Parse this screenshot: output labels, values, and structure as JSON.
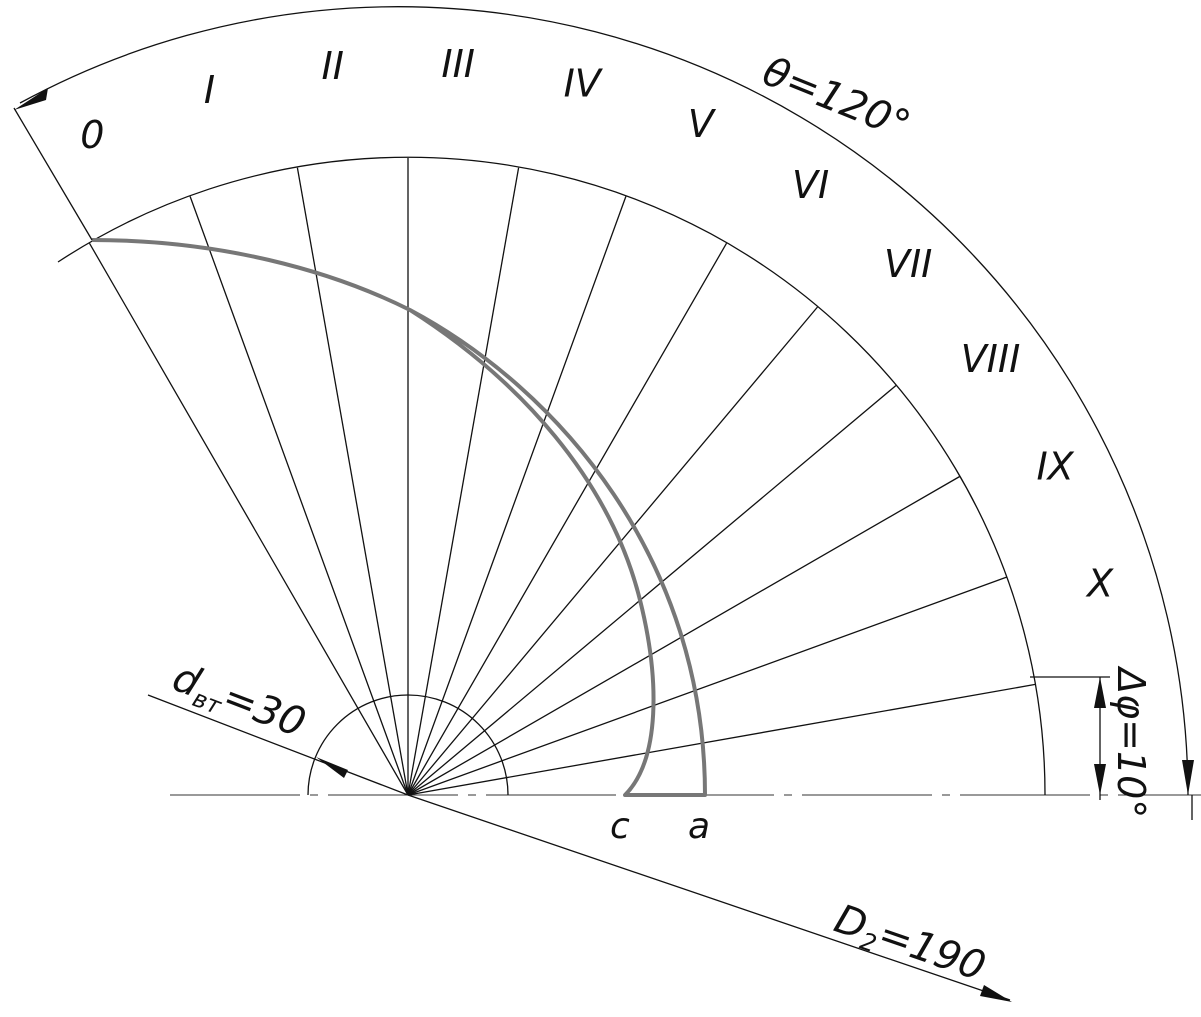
{
  "diagram": {
    "stations": [
      "0",
      "I",
      "II",
      "III",
      "IV",
      "V",
      "VI",
      "VII",
      "VIII",
      "IX",
      "X"
    ],
    "theta_label": "θ=120°",
    "dphi_label": "Δφ=10°",
    "d_in_label": {
      "main": "d",
      "sub": "вт",
      "value": "=30"
    },
    "D2_label": {
      "main": "D",
      "sub": "2",
      "value": "=190"
    },
    "point_c": "c",
    "point_a": "a",
    "theta_deg": 120,
    "dphi_deg": 10,
    "d_in": 30,
    "D2": 190
  }
}
